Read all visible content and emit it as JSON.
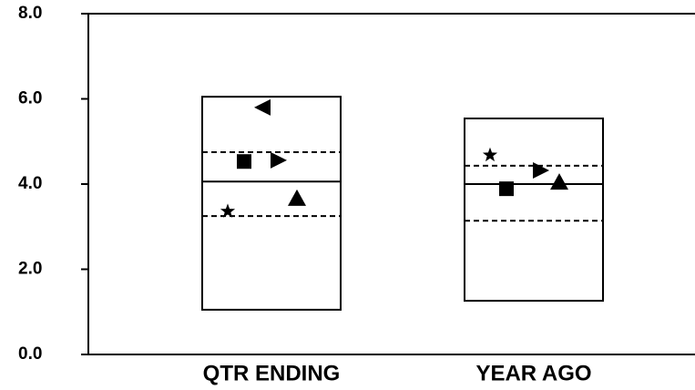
{
  "chart_data": {
    "type": "box",
    "categories": [
      "QTR ENDING",
      "YEAR AGO"
    ],
    "boxes": [
      {
        "high": 6.05,
        "p75": 4.75,
        "median": 4.06,
        "p25": 3.25,
        "low": 1.05
      },
      {
        "high": 5.54,
        "p75": 4.43,
        "median": 4.0,
        "p25": 3.14,
        "low": 1.26
      }
    ],
    "markers": [
      {
        "shape": "triangle-left",
        "values": [
          5.8,
          null
        ]
      },
      {
        "shape": "square",
        "values": [
          4.53,
          3.89
        ]
      },
      {
        "shape": "triangle-right",
        "values": [
          4.56,
          4.32
        ]
      },
      {
        "shape": "star",
        "values": [
          3.36,
          4.68
        ]
      },
      {
        "shape": "triangle-up",
        "values": [
          3.66,
          4.04
        ]
      }
    ],
    "color": "#000000",
    "ylim": [
      0,
      8
    ],
    "yticks": [
      {
        "value": 0,
        "label": "0.0"
      },
      {
        "value": 2,
        "label": "2.0"
      },
      {
        "value": 4,
        "label": "4.0"
      },
      {
        "value": 6,
        "label": "6.0"
      },
      {
        "value": 8,
        "label": "8.0"
      }
    ]
  }
}
